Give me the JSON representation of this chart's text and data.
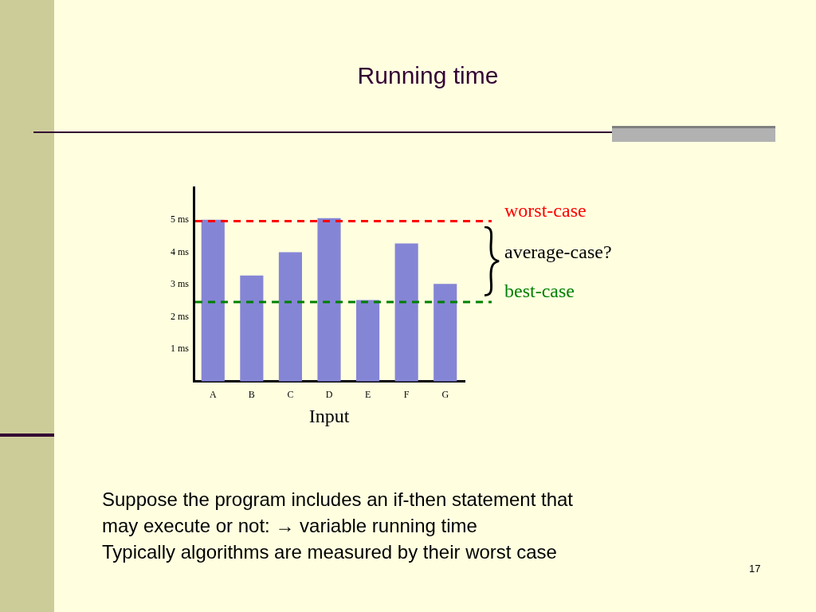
{
  "chart_data": {
    "type": "bar",
    "title": "Running time",
    "xlabel": "Input",
    "categories": [
      "A",
      "B",
      "C",
      "D",
      "E",
      "F",
      "G"
    ],
    "values": [
      5.0,
      3.28,
      4.0,
      5.05,
      2.52,
      4.27,
      3.02
    ],
    "color": "#8585d6",
    "ylim": [
      0,
      6
    ],
    "yticks": [
      {
        "value": 1,
        "label": "1 ms"
      },
      {
        "value": 2,
        "label": "2 ms"
      },
      {
        "value": 3,
        "label": "3 ms"
      },
      {
        "value": 4,
        "label": "4 ms"
      },
      {
        "value": 5,
        "label": "5 ms"
      }
    ],
    "grid": false,
    "ref_lines": [
      {
        "axis": "y",
        "value": 4.96,
        "label": "worst-case",
        "color": "#ff0000",
        "line_style": "dashed"
      },
      {
        "axis": "y",
        "value": 2.46,
        "label": "best-case",
        "color": "#008000",
        "line_style": "dashed"
      }
    ],
    "annotations": [
      "average-case?",
      "Suppose the program includes an if-then statement that",
      "may execute or not: → variable running time",
      "Typically algorithms are measured by their worst case",
      "17"
    ]
  }
}
